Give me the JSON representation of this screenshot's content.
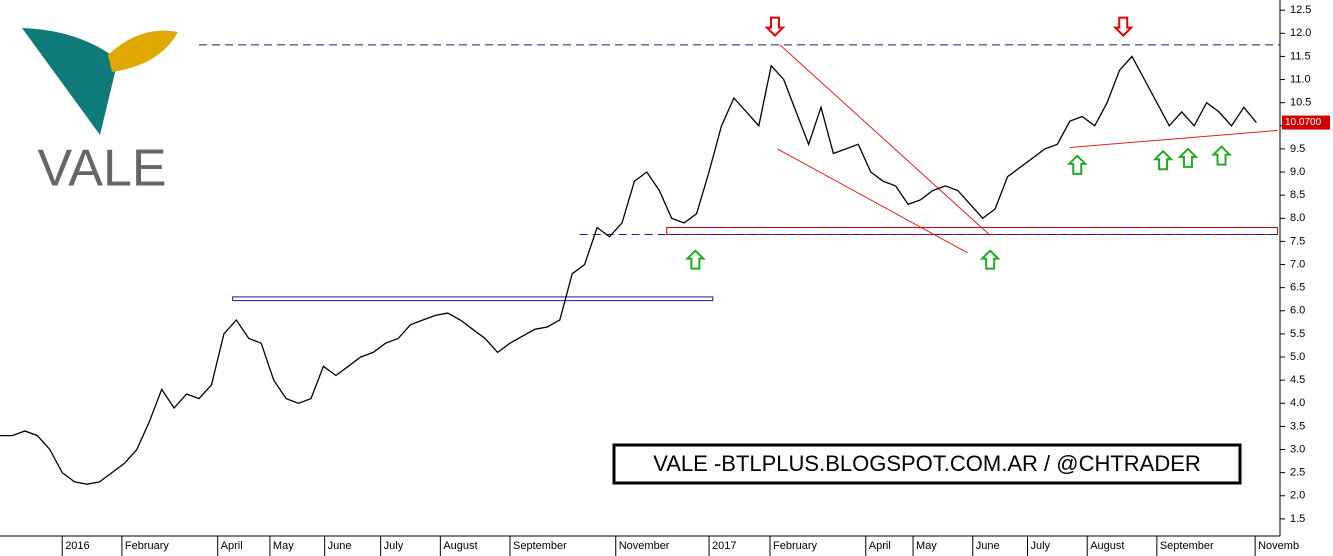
{
  "chart_data": {
    "type": "line",
    "logo_text": "VALE",
    "watermark": "VALE -BTLPLUS.BLOGSPOT.COM.AR / @CHTRADER",
    "x": [
      -5,
      -4,
      -3,
      -2,
      -1,
      0,
      1,
      2,
      3,
      4,
      5,
      6,
      7,
      8,
      9,
      10,
      11,
      12,
      13,
      14,
      15,
      16,
      17,
      18,
      19,
      20,
      21,
      22,
      23,
      24,
      25,
      26,
      27,
      28,
      29,
      30,
      31,
      32,
      33,
      34,
      35,
      36,
      37,
      38,
      39,
      40,
      41,
      42,
      43,
      44,
      45,
      46,
      47,
      48,
      49,
      50,
      51,
      52,
      53,
      54,
      55,
      56,
      57,
      58,
      59,
      60,
      61,
      62,
      63,
      64,
      65,
      66,
      67,
      68,
      69,
      70,
      71,
      72,
      73,
      74,
      75,
      76,
      77,
      78,
      79,
      80,
      81,
      82,
      83,
      84,
      85,
      86,
      87,
      88,
      89,
      90,
      91,
      92,
      93,
      94,
      95,
      96
    ],
    "values": [
      3.3,
      3.3,
      3.4,
      3.3,
      3.0,
      2.5,
      2.3,
      2.25,
      2.3,
      2.5,
      2.7,
      3.0,
      3.6,
      4.3,
      3.9,
      4.2,
      4.1,
      4.4,
      5.5,
      5.8,
      5.4,
      5.3,
      4.5,
      4.1,
      4.0,
      4.1,
      4.8,
      4.6,
      4.8,
      5.0,
      5.1,
      5.3,
      5.4,
      5.7,
      5.8,
      5.9,
      5.95,
      5.8,
      5.6,
      5.4,
      5.1,
      5.3,
      5.45,
      5.6,
      5.65,
      5.8,
      6.8,
      7.0,
      7.8,
      7.6,
      7.9,
      8.8,
      9.0,
      8.6,
      8.0,
      7.9,
      8.1,
      9.0,
      10.0,
      10.6,
      10.3,
      10.0,
      11.3,
      11.0,
      10.3,
      9.6,
      10.4,
      9.4,
      9.5,
      9.6,
      9.0,
      8.8,
      8.7,
      8.3,
      8.4,
      8.6,
      8.7,
      8.6,
      8.3,
      8.0,
      8.2,
      8.9,
      9.1,
      9.3,
      9.5,
      9.6,
      10.1,
      10.2,
      10.0,
      10.5,
      11.2,
      11.5,
      11.0,
      10.5,
      10.0,
      10.3,
      10.0,
      10.5,
      10.3,
      10.0,
      10.4,
      10.07
    ],
    "color": "#000000",
    "xlim": [
      -5,
      97.9
    ],
    "xticks": [
      {
        "value": 0,
        "label": "2016"
      },
      {
        "value": 4.8,
        "label": "February"
      },
      {
        "value": 12.5,
        "label": "April"
      },
      {
        "value": 16.7,
        "label": "May"
      },
      {
        "value": 21.1,
        "label": "June"
      },
      {
        "value": 25.6,
        "label": "July"
      },
      {
        "value": 30.4,
        "label": "August"
      },
      {
        "value": 36,
        "label": "September"
      },
      {
        "value": 44.5,
        "label": "November"
      },
      {
        "value": 52,
        "label": "2017"
      },
      {
        "value": 56.9,
        "label": "February"
      },
      {
        "value": 64.6,
        "label": "April"
      },
      {
        "value": 68.4,
        "label": "May"
      },
      {
        "value": 73.2,
        "label": "June"
      },
      {
        "value": 77.6,
        "label": "July"
      },
      {
        "value": 82.4,
        "label": "August"
      },
      {
        "value": 88,
        "label": "September"
      },
      {
        "value": 95.9,
        "label": "Novemb"
      }
    ],
    "ylim": [
      1.13,
      12.72
    ],
    "yticks": [
      1.5,
      {
        "value": 2,
        "label": "2.0"
      },
      2.5,
      {
        "value": 3,
        "label": "3.0"
      },
      3.5,
      {
        "value": 4,
        "label": "4.0"
      },
      4.5,
      {
        "value": 5,
        "label": "5.0"
      },
      5.5,
      {
        "value": 6,
        "label": "6.0"
      },
      6.5,
      {
        "value": 7,
        "label": "7.0"
      },
      7.5,
      {
        "value": 8,
        "label": "8.0"
      },
      8.5,
      {
        "value": 9,
        "label": "9.0"
      },
      9.5,
      {
        "value": 10,
        "label": "10.0"
      },
      10.5,
      {
        "value": 11,
        "label": "11.0"
      },
      11.5,
      {
        "value": 12,
        "label": "12.0"
      },
      12.5
    ],
    "grid": false,
    "last_price": {
      "value": 10.07,
      "label": "10.0700"
    },
    "hlines": [
      {
        "y": 11.75,
        "x0": 11,
        "color": "#1a1a6e"
      },
      {
        "y": 7.65,
        "x0": 41.6,
        "color": "#1a1a9e"
      }
    ],
    "zones": [
      {
        "y": [
          6.22,
          6.3
        ],
        "x": [
          13.7,
          52.3
        ],
        "color": "#1a1aa0"
      },
      {
        "y": [
          7.65,
          7.8
        ],
        "x": [
          48.6,
          97.7
        ],
        "color": "#c00000"
      }
    ],
    "trendlines": [
      {
        "x": [
          57.7,
          74.6
        ],
        "y": [
          11.75,
          7.63
        ],
        "color": "#e02020"
      },
      {
        "x": [
          57.5,
          72.8
        ],
        "y": [
          9.5,
          7.25
        ],
        "color": "#e02020"
      },
      {
        "x": [
          81,
          97.7
        ],
        "y": [
          9.53,
          9.9
        ],
        "color": "#e02020"
      }
    ],
    "arrows": [
      {
        "x": 57.3,
        "y": 11.95,
        "direction": "down",
        "color": "#e00000"
      },
      {
        "x": 85.3,
        "y": 11.95,
        "direction": "down",
        "color": "#e00000"
      },
      {
        "x": 50.9,
        "y": 7.3,
        "direction": "up",
        "color": "#22aa22"
      },
      {
        "x": 74.6,
        "y": 7.3,
        "direction": "up",
        "color": "#22aa22"
      },
      {
        "x": 81.6,
        "y": 9.35,
        "direction": "up",
        "color": "#22aa22"
      },
      {
        "x": 88.5,
        "y": 9.45,
        "direction": "up",
        "color": "#22aa22"
      },
      {
        "x": 90.5,
        "y": 9.5,
        "direction": "up",
        "color": "#22aa22"
      },
      {
        "x": 93.2,
        "y": 9.55,
        "direction": "up",
        "color": "#22aa22"
      }
    ]
  }
}
